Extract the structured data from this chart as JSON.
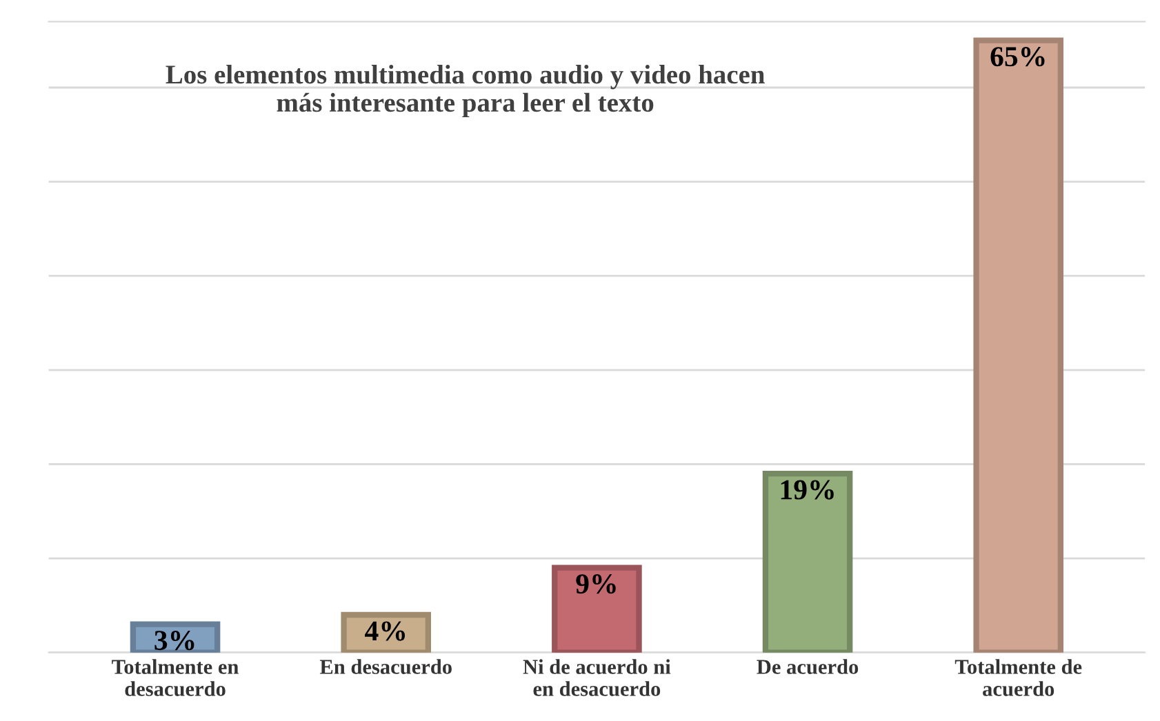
{
  "chart_data": {
    "type": "bar",
    "title": "Los elementos multimedia como audio y video hacen\nmás interesante para leer el texto",
    "categories": [
      "Totalmente en\ndesacuerdo",
      "En desacuerdo",
      "Ni de acuerdo ni\nen desacuerdo",
      "De acuerdo",
      "Totalmente de\nacuerdo"
    ],
    "values": [
      3,
      4,
      9,
      19,
      65
    ],
    "colors": [
      "#819fbf",
      "#c9ae8b",
      "#c26a70",
      "#93ad7b",
      "#d0a692"
    ],
    "ylim": [
      0,
      67
    ],
    "yticks": [
      {
        "value": 0,
        "label": null
      },
      {
        "value": 10,
        "label": null
      },
      {
        "value": 20,
        "label": null
      },
      {
        "value": 30,
        "label": null
      },
      {
        "value": 40,
        "label": null
      },
      {
        "value": 50,
        "label": null
      },
      {
        "value": 60,
        "label": null
      }
    ],
    "grid": "y",
    "tick_labels": "x",
    "data_labels": true,
    "value_labels": [
      "3%",
      "4%",
      "9%",
      "19%",
      "65%"
    ]
  }
}
